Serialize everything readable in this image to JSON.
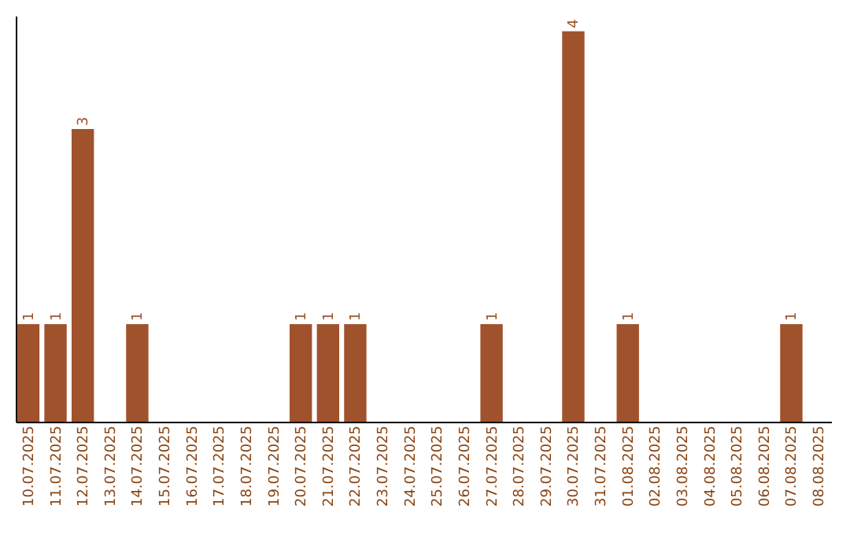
{
  "chart_data": {
    "type": "bar",
    "categories": [
      "10.07.2025",
      "11.07.2025",
      "12.07.2025",
      "13.07.2025",
      "14.07.2025",
      "15.07.2025",
      "16.07.2025",
      "17.07.2025",
      "18.07.2025",
      "19.07.2025",
      "20.07.2025",
      "21.07.2025",
      "22.07.2025",
      "23.07.2025",
      "24.07.2025",
      "25.07.2025",
      "26.07.2025",
      "27.07.2025",
      "28.07.2025",
      "29.07.2025",
      "30.07.2025",
      "31.07.2025",
      "01.08.2025",
      "02.08.2025",
      "03.08.2025",
      "04.08.2025",
      "05.08.2025",
      "06.08.2025",
      "07.08.2025",
      "08.08.2025"
    ],
    "values": [
      1,
      1,
      3,
      0,
      1,
      0,
      0,
      0,
      0,
      0,
      1,
      1,
      1,
      0,
      0,
      0,
      0,
      1,
      0,
      0,
      4,
      0,
      1,
      0,
      0,
      0,
      0,
      0,
      1,
      0
    ],
    "value_labels": [
      "1",
      "1",
      "3",
      null,
      "1",
      null,
      null,
      null,
      null,
      null,
      "1",
      "1",
      "1",
      null,
      null,
      null,
      null,
      "1",
      null,
      null,
      "4",
      null,
      "1",
      null,
      null,
      null,
      null,
      null,
      "1",
      null
    ],
    "color": "#a0522d",
    "ylim": [
      0,
      4.16
    ],
    "grid": false,
    "tick_labels": "x"
  }
}
